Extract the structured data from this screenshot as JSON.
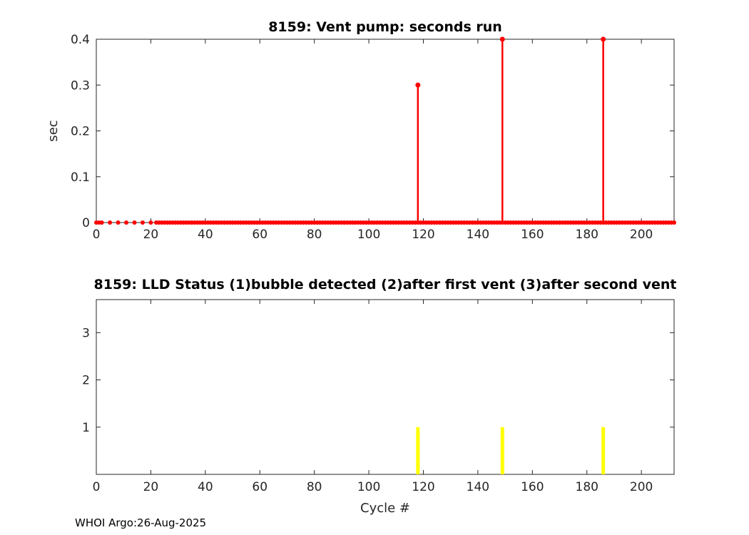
{
  "figure": {
    "footer_credit": "WHOI Argo:26-Aug-2025"
  },
  "chart_data": [
    {
      "id": "vent_pump",
      "type": "stem",
      "title": "8159: Vent pump: seconds run",
      "xlabel": "",
      "ylabel": "sec",
      "xlim": [
        0,
        212
      ],
      "ylim": [
        0,
        0.4
      ],
      "xticks": [
        0,
        20,
        40,
        60,
        80,
        100,
        120,
        140,
        160,
        180,
        200
      ],
      "yticks": [
        0,
        0.1,
        0.2,
        0.3,
        0.4
      ],
      "grid": false,
      "legend": null,
      "marker_color": "#ff0000",
      "stems": [
        {
          "x": 118,
          "y": 0.3
        },
        {
          "x": 149,
          "y": 0.4
        },
        {
          "x": 186,
          "y": 0.4
        }
      ],
      "zero_dots": {
        "sparse_x": [
          0,
          1,
          2,
          5,
          8,
          11,
          14,
          17,
          20
        ],
        "dense_start": 22,
        "dense_end": 212,
        "dense_step": 1,
        "value": 0
      }
    },
    {
      "id": "lld_status",
      "type": "bar",
      "title": "8159: LLD Status   (1)bubble detected   (2)after first vent  (3)after second vent",
      "xlabel": "Cycle #",
      "ylabel": "",
      "xlim": [
        0,
        212
      ],
      "ylim": [
        0,
        3.7
      ],
      "xticks": [
        0,
        20,
        40,
        60,
        80,
        100,
        120,
        140,
        160,
        180,
        200
      ],
      "yticks": [
        1,
        2,
        3
      ],
      "grid": false,
      "legend": null,
      "bar_color": "#ffff00",
      "bars": [
        {
          "x": 118,
          "y": 1
        },
        {
          "x": 149,
          "y": 1
        },
        {
          "x": 186,
          "y": 1
        }
      ]
    }
  ]
}
